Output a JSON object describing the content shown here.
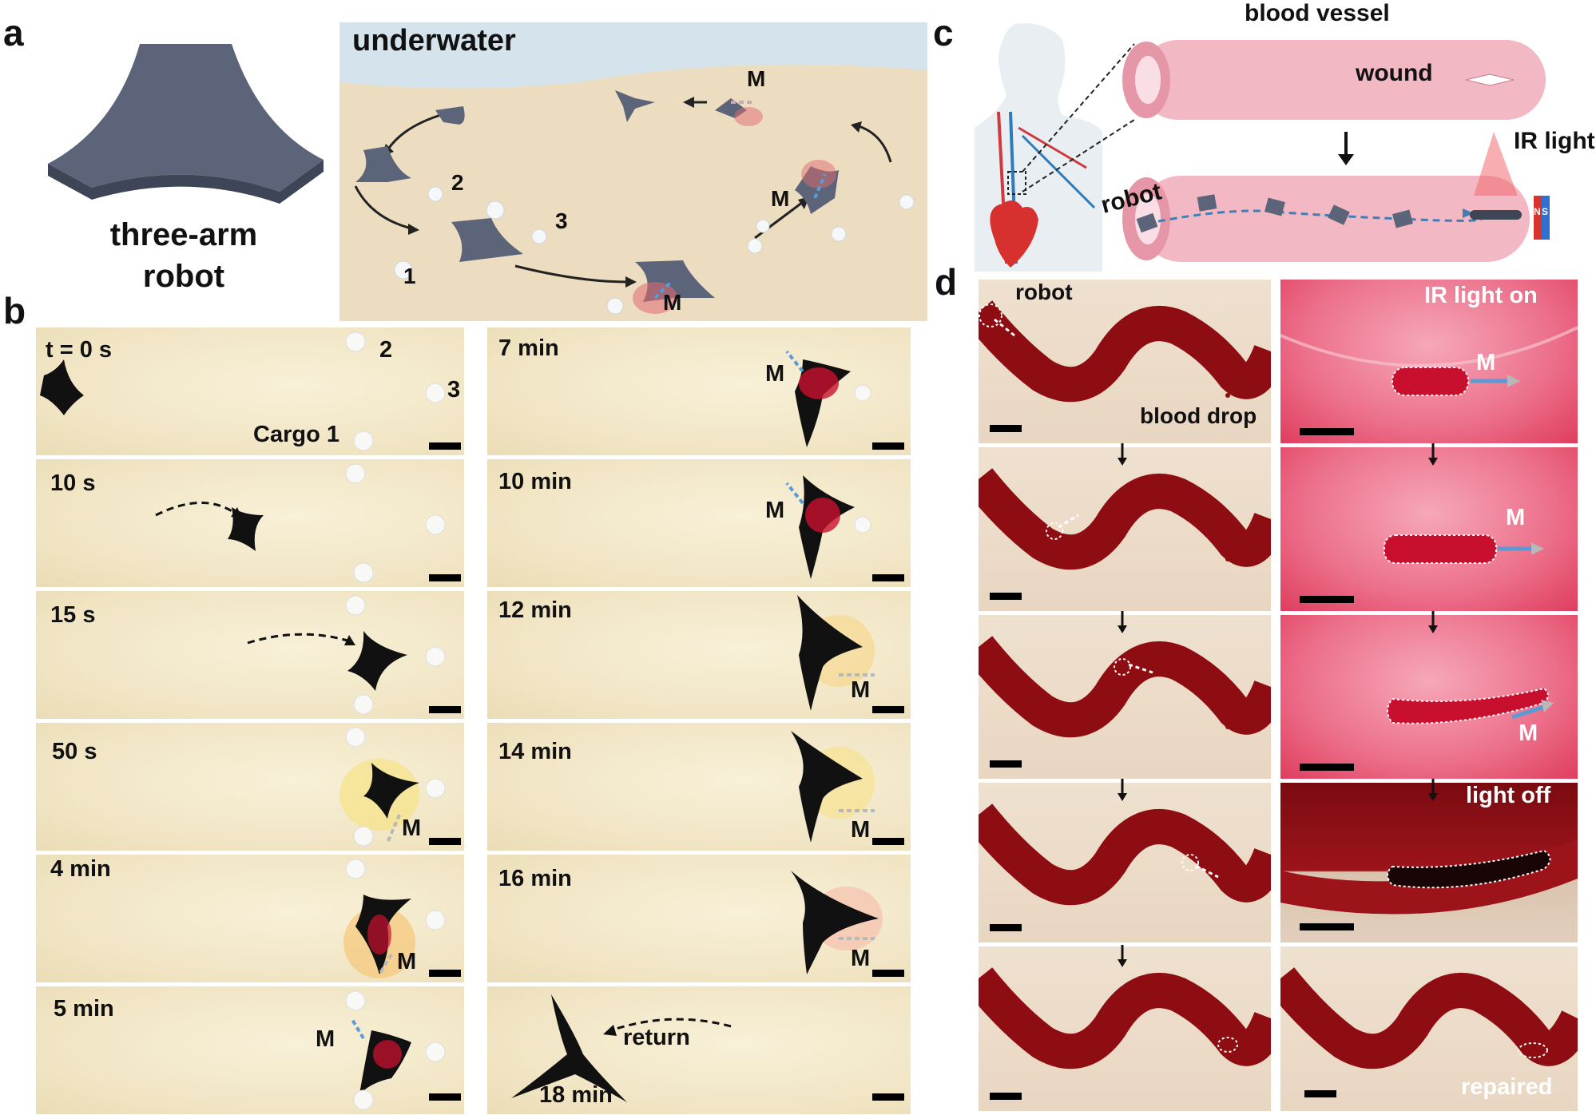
{
  "panels": {
    "a": {
      "label": "a",
      "robot_caption_line1": "three-arm",
      "robot_caption_line2": "robot",
      "scene_title": "underwater",
      "cargo_labels": [
        "1",
        "2",
        "3"
      ],
      "field_label": "M"
    },
    "b": {
      "label": "b",
      "left_frames": [
        {
          "time": "t = 0 s"
        },
        {
          "time": "10 s"
        },
        {
          "time": "15 s"
        },
        {
          "time": "50 s"
        },
        {
          "time": "4 min"
        },
        {
          "time": "5 min"
        }
      ],
      "right_frames": [
        {
          "time": "7 min"
        },
        {
          "time": "10 min"
        },
        {
          "time": "12 min"
        },
        {
          "time": "14 min"
        },
        {
          "time": "16 min"
        },
        {
          "time": "18 min"
        }
      ],
      "cargo_1": "Cargo 1",
      "cargo_2": "2",
      "cargo_3": "3",
      "field_label": "M",
      "return_label": "return"
    },
    "c": {
      "label": "c",
      "vessel_title": "blood vessel",
      "wound_label": "wound",
      "robot_label": "robot",
      "ir_label": "IR light",
      "magnet_n": "N",
      "magnet_s": "S"
    },
    "d": {
      "label": "d",
      "robot_label": "robot",
      "blood_drop_label": "blood drop",
      "ir_on_label": "IR light on",
      "light_off_label": "light off",
      "repaired_label": "repaired",
      "field_label": "M"
    }
  },
  "colors": {
    "robot_gray": "#5b6478",
    "vessel_pink": "#f2b8c4",
    "blood_red": "#8e0d12",
    "field_arrow_blue": "#5b9bd5",
    "field_arrow_gray": "#b8b8b8"
  }
}
